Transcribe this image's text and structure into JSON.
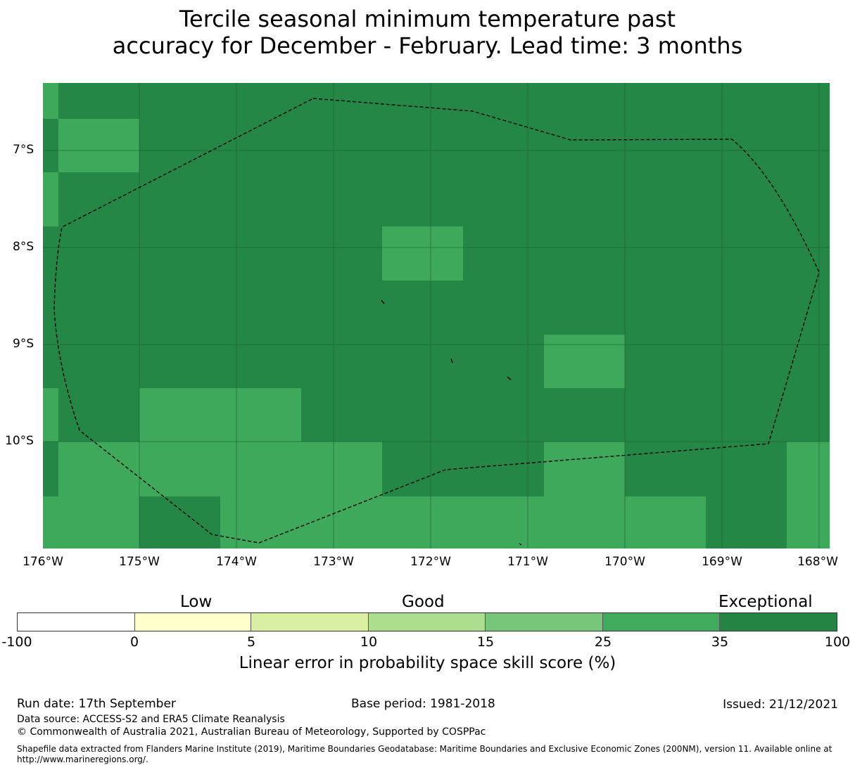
{
  "title": {
    "line1": "Tercile seasonal minimum temperature past",
    "line2": "accuracy for December - February. Lead time: 3 months"
  },
  "map": {
    "lat_labels": [
      "7°S",
      "8°S",
      "9°S",
      "10°S"
    ],
    "lon_labels": [
      "176°W",
      "175°W",
      "174°W",
      "173°W",
      "172°W",
      "171°W",
      "170°W",
      "169°W",
      "168°W"
    ],
    "colors": {
      "dark": "#248746",
      "light": "#3fa95b",
      "grid": "#1e5e34",
      "boundary": "#000000"
    }
  },
  "legend": {
    "categories": [
      "Low",
      "Good",
      "Exceptional"
    ],
    "ticks": [
      "-100",
      "0",
      "5",
      "10",
      "15",
      "25",
      "35",
      "100"
    ],
    "colors": [
      "#ffffff",
      "#ffffcc",
      "#d9f0a3",
      "#addd8e",
      "#78c679",
      "#41ab5d",
      "#238443"
    ],
    "axis_label": "Linear error in probability space skill score (%)"
  },
  "footer": {
    "run_date": "Run date: 17th September",
    "base_period": "Base period: 1981-2018",
    "issued": "Issued: 21/12/2021",
    "data_source": "Data source: ACCESS-S2 and ERA5 Climate Reanalysis",
    "copyright": "© Commonwealth of Australia 2021, Australian Bureau of Meteorology, Supported by COSPPac",
    "shapefile": "Shapefile data extracted from Flanders Marine Institute (2019), Maritime Boundaries Geodatabase: Maritime Boundaries and Exclusive Economic Zones (200NM), version 11. Available online at http://www.marineregions.org/."
  }
}
